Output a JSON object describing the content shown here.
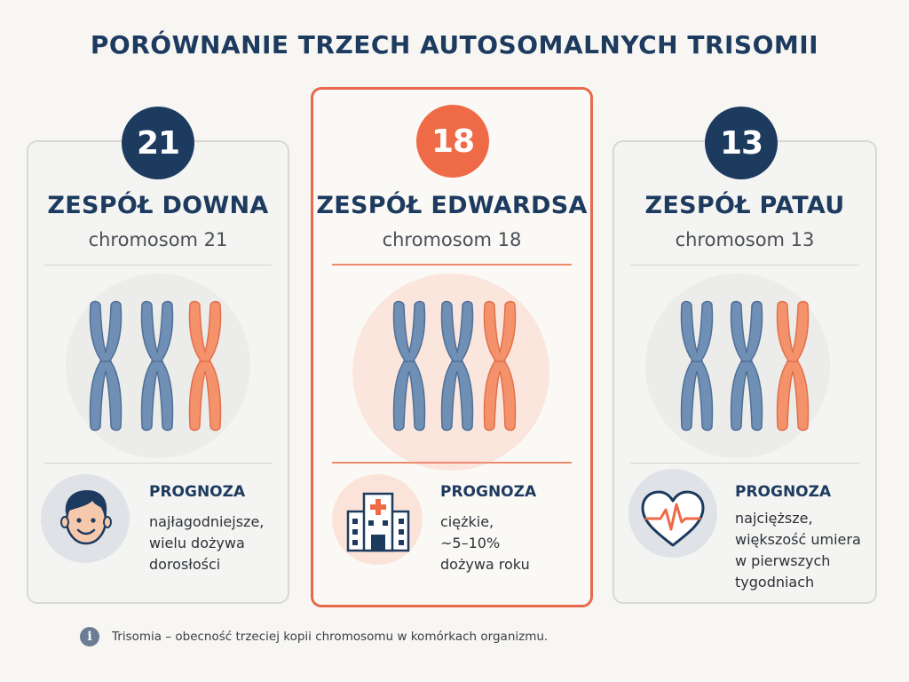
{
  "title": "PORÓWNANIE TRZECH AUTOSOMALNYCH TRISOMII",
  "colors": {
    "navy": "#1d3a5f",
    "orange_accent": "#ef6a47",
    "chromosome_blue": "#6f8fb4",
    "chromosome_orange": "#f4926c"
  },
  "cards": [
    {
      "number": "21",
      "name": "ZESPÓŁ DOWNA",
      "chromosome": "chromosom 21",
      "icon": "smiling-face-icon",
      "prognosis_label": "PROGNOZA",
      "prognosis_lines": [
        "najłagodniejsze,",
        "wielu dożywa",
        "dorosłości"
      ]
    },
    {
      "number": "18",
      "name": "ZESPÓŁ EDWARDSA",
      "chromosome": "chromosom 18",
      "icon": "hospital-icon",
      "prognosis_label": "PROGNOZA",
      "prognosis_lines": [
        "ciężkie,",
        "~5–10%",
        "dożywa roku"
      ]
    },
    {
      "number": "13",
      "name": "ZESPÓŁ PATAU",
      "chromosome": "chromosom 13",
      "icon": "heart-pulse-icon",
      "prognosis_label": "PROGNOZA",
      "prognosis_lines": [
        "najcięższe,",
        "większość umiera",
        "w pierwszych",
        "tygodniach"
      ]
    }
  ],
  "footnote": "Trisomia – obecność trzeciej kopii chromosomu w komórkach organizmu."
}
